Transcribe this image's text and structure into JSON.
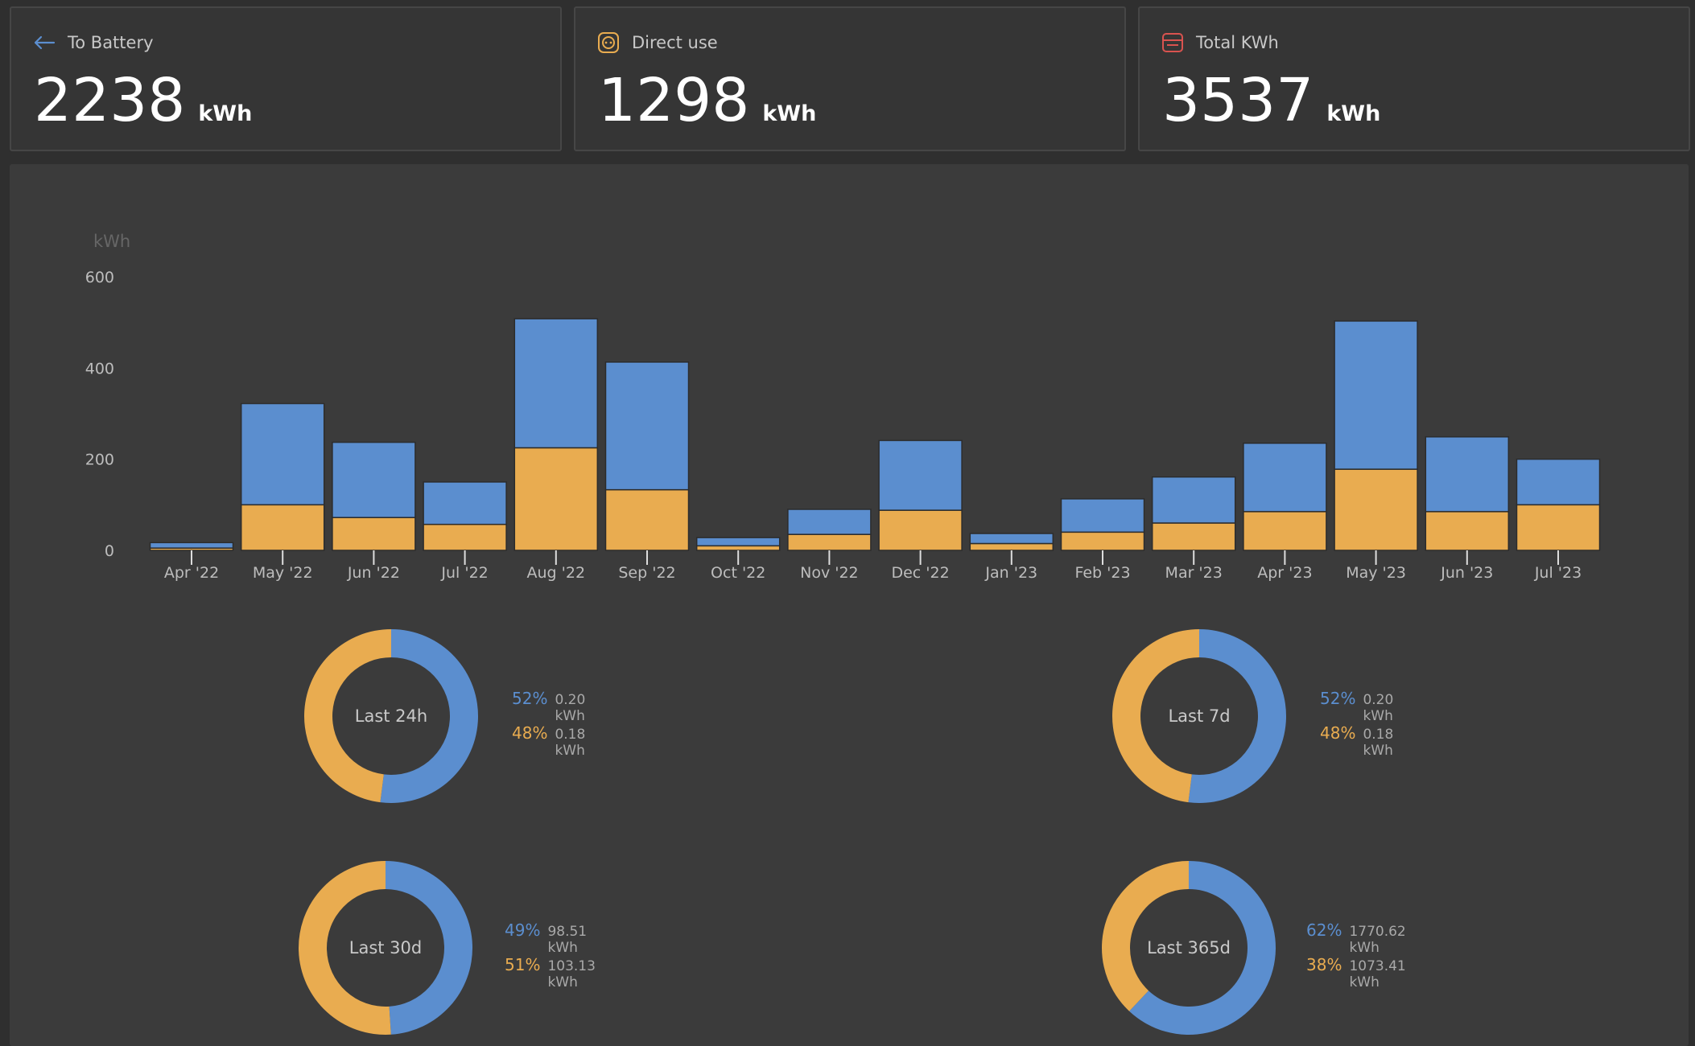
{
  "colors": {
    "battery": "#5b8ecf",
    "direct": "#e9ac50",
    "total_icon": "#d9534f"
  },
  "cards": [
    {
      "label": "To Battery",
      "value": "2238",
      "unit": "kWh",
      "icon": "arrow-left-icon"
    },
    {
      "label": "Direct use",
      "value": "1298",
      "unit": "kWh",
      "icon": "socket-icon"
    },
    {
      "label": "Total KWh",
      "value": "3537",
      "unit": "kWh",
      "icon": "meter-icon"
    }
  ],
  "chart_data": {
    "type": "bar",
    "stacked": true,
    "ylabel": "kWh",
    "ylim": [
      0,
      600
    ],
    "yticks": [
      0,
      200,
      400,
      600
    ],
    "categories": [
      "Apr '22",
      "May '22",
      "Jun '22",
      "Jul '22",
      "Aug '22",
      "Sep '22",
      "Oct '22",
      "Nov '22",
      "Dec '22",
      "Jan '23",
      "Feb '23",
      "Mar '23",
      "Apr '23",
      "May '23",
      "Jun '23",
      "Jul '23"
    ],
    "series": [
      {
        "name": "Direct use",
        "color": "#e9ac50",
        "values": [
          5,
          100,
          72,
          57,
          225,
          133,
          10,
          35,
          88,
          15,
          40,
          60,
          85,
          178,
          85,
          100
        ]
      },
      {
        "name": "To Battery",
        "color": "#5b8ecf",
        "values": [
          12,
          222,
          165,
          93,
          283,
          280,
          18,
          55,
          153,
          22,
          73,
          101,
          150,
          325,
          164,
          100
        ]
      }
    ]
  },
  "donuts": [
    {
      "label": "Last 24h",
      "battery_pct": "52%",
      "battery_val": "0.20 kWh",
      "direct_pct": "48%",
      "direct_val": "0.18 kWh",
      "battery_fraction": 0.52
    },
    {
      "label": "Last 7d",
      "battery_pct": "52%",
      "battery_val": "0.20 kWh",
      "direct_pct": "48%",
      "direct_val": "0.18 kWh",
      "battery_fraction": 0.52
    },
    {
      "label": "Last 30d",
      "battery_pct": "49%",
      "battery_val": "98.51 kWh",
      "direct_pct": "51%",
      "direct_val": "103.13 kWh",
      "battery_fraction": 0.49
    },
    {
      "label": "Last 365d",
      "battery_pct": "62%",
      "battery_val": "1770.62 kWh",
      "direct_pct": "38%",
      "direct_val": "1073.41 kWh",
      "battery_fraction": 0.62
    }
  ]
}
